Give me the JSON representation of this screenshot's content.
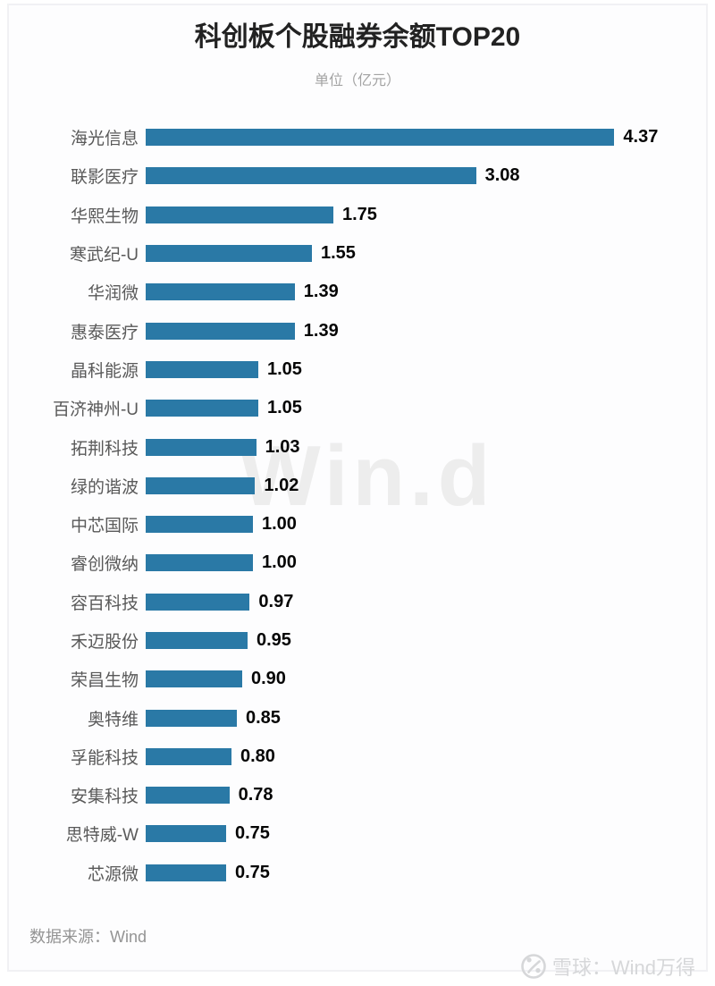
{
  "title": "科创板个股融券余额TOP20",
  "subtitle": "单位（亿元）",
  "watermark_text": "Win.d",
  "source_text": "数据来源：Wind",
  "branding": {
    "label": "雪球：Wind万得"
  },
  "colors": {
    "bar": "#2a79a6",
    "title_text": "#222222",
    "subtitle_text": "#a3a3a3",
    "label_text": "#595959",
    "value_text": "#050505",
    "watermark": "#ededed",
    "branding_text": "#d6d7d9",
    "card_border": "#f1f1f4"
  },
  "chart_data": {
    "type": "bar",
    "orientation": "horizontal",
    "title": "科创板个股融券余额TOP20",
    "subtitle": "单位（亿元）",
    "xlabel": "",
    "ylabel": "",
    "grid": false,
    "legend": false,
    "xlim": [
      0,
      4.6
    ],
    "categories": [
      "海光信息",
      "联影医疗",
      "华熙生物",
      "寒武纪-U",
      "华润微",
      "惠泰医疗",
      "晶科能源",
      "百济神州-U",
      "拓荆科技",
      "绿的谐波",
      "中芯国际",
      "睿创微纳",
      "容百科技",
      "禾迈股份",
      "荣昌生物",
      "奥特维",
      "孚能科技",
      "安集科技",
      "思特威-W",
      "芯源微"
    ],
    "values": [
      4.37,
      3.08,
      1.75,
      1.55,
      1.39,
      1.39,
      1.05,
      1.05,
      1.03,
      1.02,
      1.0,
      1.0,
      0.97,
      0.95,
      0.9,
      0.85,
      0.8,
      0.78,
      0.75,
      0.75
    ],
    "value_labels": [
      "4.37",
      "3.08",
      "1.75",
      "1.55",
      "1.39",
      "1.39",
      "1.05",
      "1.05",
      "1.03",
      "1.02",
      "1.00",
      "1.00",
      "0.97",
      "0.95",
      "0.90",
      "0.85",
      "0.80",
      "0.78",
      "0.75",
      "0.75"
    ]
  }
}
